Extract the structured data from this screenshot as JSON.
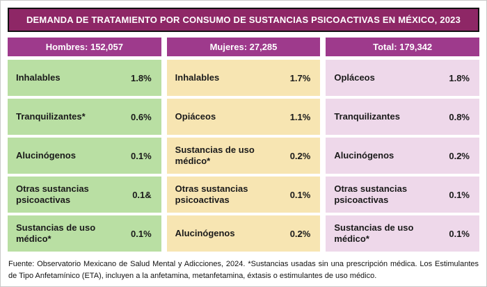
{
  "title": "DEMANDA DE TRATAMIENTO POR CONSUMO DE SUSTANCIAS PSICOACTIVAS EN MÉXICO, 2023",
  "colors": {
    "title_bg": "#8e2766",
    "header_bg": "#9e3a8c",
    "hombres_bg": "#b9dfa3",
    "mujeres_bg": "#f7e5b2",
    "total_bg": "#eed8ea",
    "text": "#1a1a1a"
  },
  "columns": [
    {
      "header": "Hombres: 152,057",
      "rows": [
        {
          "label": "Inhalables",
          "value": "1.8%"
        },
        {
          "label": "Tranquilizantes*",
          "value": "0.6%"
        },
        {
          "label": "Alucinógenos",
          "value": "0.1%"
        },
        {
          "label": "Otras sustancias psicoactivas",
          "value": "0.1&"
        },
        {
          "label": "Sustancias de uso médico*",
          "value": "0.1%"
        }
      ]
    },
    {
      "header": "Mujeres: 27,285",
      "rows": [
        {
          "label": "Inhalables",
          "value": "1.7%"
        },
        {
          "label": "Opiáceos",
          "value": "1.1%"
        },
        {
          "label": "Sustancias de uso médico*",
          "value": "0.2%"
        },
        {
          "label": "Otras sustancias psicoactivas",
          "value": "0.1%"
        },
        {
          "label": "Alucinógenos",
          "value": "0.2%"
        }
      ]
    },
    {
      "header": "Total: 179,342",
      "rows": [
        {
          "label": "Opláceos",
          "value": "1.8%"
        },
        {
          "label": "Tranquilizantes",
          "value": "0.8%"
        },
        {
          "label": "Alucinógenos",
          "value": "0.2%"
        },
        {
          "label": "Otras sustancias psicoactivas",
          "value": "0.1%"
        },
        {
          "label": "Sustancias de uso médico*",
          "value": "0.1%"
        }
      ]
    }
  ],
  "footer": "Fuente: Observatorio Mexicano de Salud Mental y Adicciones, 2024. *Sustancias usadas sin una prescripción médica. Los Estimulantes de Tipo Anfetamínico (ETA), incluyen a la anfetamina, metanfetamina, éxtasis o estimulantes de uso médico.",
  "chart_data": {
    "type": "table",
    "title": "DEMANDA DE TRATAMIENTO POR CONSUMO DE SUSTANCIAS PSICOACTIVAS EN MÉXICO, 2023",
    "groups": [
      {
        "name": "Hombres",
        "total_demand": 152057,
        "substances": [
          "Inhalables",
          "Tranquilizantes*",
          "Alucinógenos",
          "Otras sustancias psicoactivas",
          "Sustancias de uso médico*"
        ],
        "percentages": [
          1.8,
          0.6,
          0.1,
          0.1,
          0.1
        ]
      },
      {
        "name": "Mujeres",
        "total_demand": 27285,
        "substances": [
          "Inhalables",
          "Opiáceos",
          "Sustancias de uso médico*",
          "Otras sustancias psicoactivas",
          "Alucinógenos"
        ],
        "percentages": [
          1.7,
          1.1,
          0.2,
          0.1,
          0.2
        ]
      },
      {
        "name": "Total",
        "total_demand": 179342,
        "substances": [
          "Opiáceos",
          "Tranquilizantes",
          "Alucinógenos",
          "Otras sustancias psicoactivas",
          "Sustancias de uso médico*"
        ],
        "percentages": [
          1.8,
          0.8,
          0.2,
          0.1,
          0.1
        ]
      }
    ],
    "source_note": "Fuente: Observatorio Mexicano de Salud Mental y Adicciones, 2024."
  }
}
